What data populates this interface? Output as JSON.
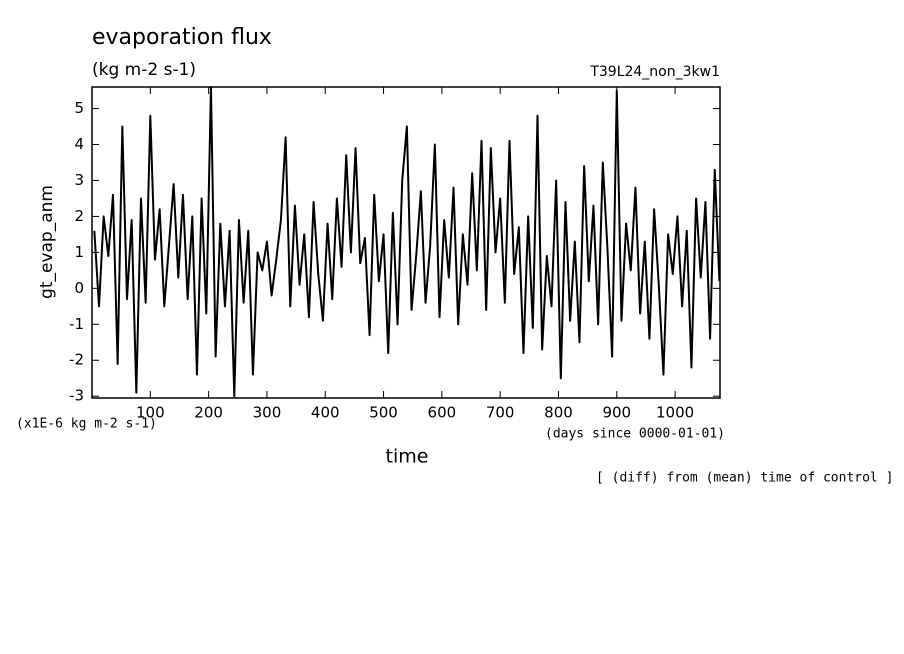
{
  "chart_data": {
    "type": "line",
    "title": "evaporation flux",
    "subtitle": "(kg m-2 s-1)",
    "run_label": "T39L24_non_3kw1",
    "ylabel": "gt_evap_anm",
    "y_units": "(x1E-6 kg m-2 s-1)",
    "xlabel": "time",
    "x_units": "(days since 0000-01-01)",
    "footnote": "[ (diff) from (mean) time of control ]",
    "color": "#000000",
    "xlim": [
      0,
      1077
    ],
    "ylim": [
      -3.05,
      5.6
    ],
    "xticks": [
      100,
      200,
      300,
      400,
      500,
      600,
      700,
      800,
      900,
      1000
    ],
    "yticks": [
      -3,
      -2,
      -1,
      0,
      1,
      2,
      3,
      4,
      5
    ],
    "x": [
      4,
      12,
      20,
      28,
      36,
      44,
      52,
      60,
      68,
      76,
      84,
      92,
      100,
      108,
      116,
      124,
      132,
      140,
      148,
      156,
      164,
      172,
      180,
      188,
      196,
      204,
      212,
      220,
      228,
      236,
      244,
      252,
      260,
      268,
      276,
      284,
      292,
      300,
      308,
      316,
      324,
      332,
      340,
      348,
      356,
      364,
      372,
      380,
      388,
      396,
      404,
      412,
      420,
      428,
      436,
      444,
      452,
      460,
      468,
      476,
      484,
      492,
      500,
      508,
      516,
      524,
      532,
      540,
      548,
      556,
      564,
      572,
      580,
      588,
      596,
      604,
      612,
      620,
      628,
      636,
      644,
      652,
      660,
      668,
      676,
      684,
      692,
      700,
      708,
      716,
      724,
      732,
      740,
      748,
      756,
      764,
      772,
      780,
      788,
      796,
      804,
      812,
      820,
      828,
      836,
      844,
      852,
      860,
      868,
      876,
      884,
      892,
      900,
      908,
      916,
      924,
      932,
      940,
      948,
      956,
      964,
      972,
      980,
      988,
      996,
      1004,
      1012,
      1020,
      1028,
      1036,
      1044,
      1052,
      1060,
      1068,
      1076
    ],
    "values": [
      1.6,
      -0.5,
      2.0,
      0.9,
      2.6,
      -2.1,
      4.5,
      -0.3,
      1.9,
      -2.9,
      2.5,
      -0.4,
      4.8,
      0.8,
      2.2,
      -0.5,
      1.2,
      2.9,
      0.3,
      2.6,
      -0.3,
      2.0,
      -2.4,
      2.5,
      -0.7,
      5.6,
      -1.9,
      1.8,
      -0.5,
      1.6,
      -3.0,
      1.9,
      -0.4,
      1.6,
      -2.4,
      1.0,
      0.5,
      1.3,
      -0.2,
      0.8,
      1.9,
      4.2,
      -0.5,
      2.3,
      0.1,
      1.5,
      -0.8,
      2.4,
      0.4,
      -0.9,
      1.8,
      -0.3,
      2.5,
      0.6,
      3.7,
      1.0,
      3.9,
      0.7,
      1.4,
      -1.3,
      2.6,
      0.2,
      1.5,
      -1.8,
      2.1,
      -1.0,
      3.0,
      4.5,
      -0.6,
      0.9,
      2.7,
      -0.4,
      1.2,
      4.0,
      -0.8,
      1.9,
      0.3,
      2.8,
      -1.0,
      1.5,
      0.1,
      3.2,
      0.5,
      4.1,
      -0.6,
      3.9,
      1.0,
      2.5,
      -0.4,
      4.1,
      0.4,
      1.7,
      -1.8,
      2.0,
      -1.1,
      4.8,
      -1.7,
      0.9,
      -0.5,
      3.0,
      -2.5,
      2.4,
      -0.9,
      1.3,
      -1.5,
      3.4,
      0.2,
      2.3,
      -1.0,
      3.5,
      1.1,
      -1.9,
      5.5,
      -0.9,
      1.8,
      0.5,
      2.8,
      -0.7,
      1.3,
      -1.4,
      2.2,
      0.1,
      -2.4,
      1.5,
      0.4,
      2.0,
      -0.5,
      1.6,
      -2.2,
      2.5,
      0.3,
      2.4,
      -1.4,
      3.3,
      0.2
    ]
  }
}
